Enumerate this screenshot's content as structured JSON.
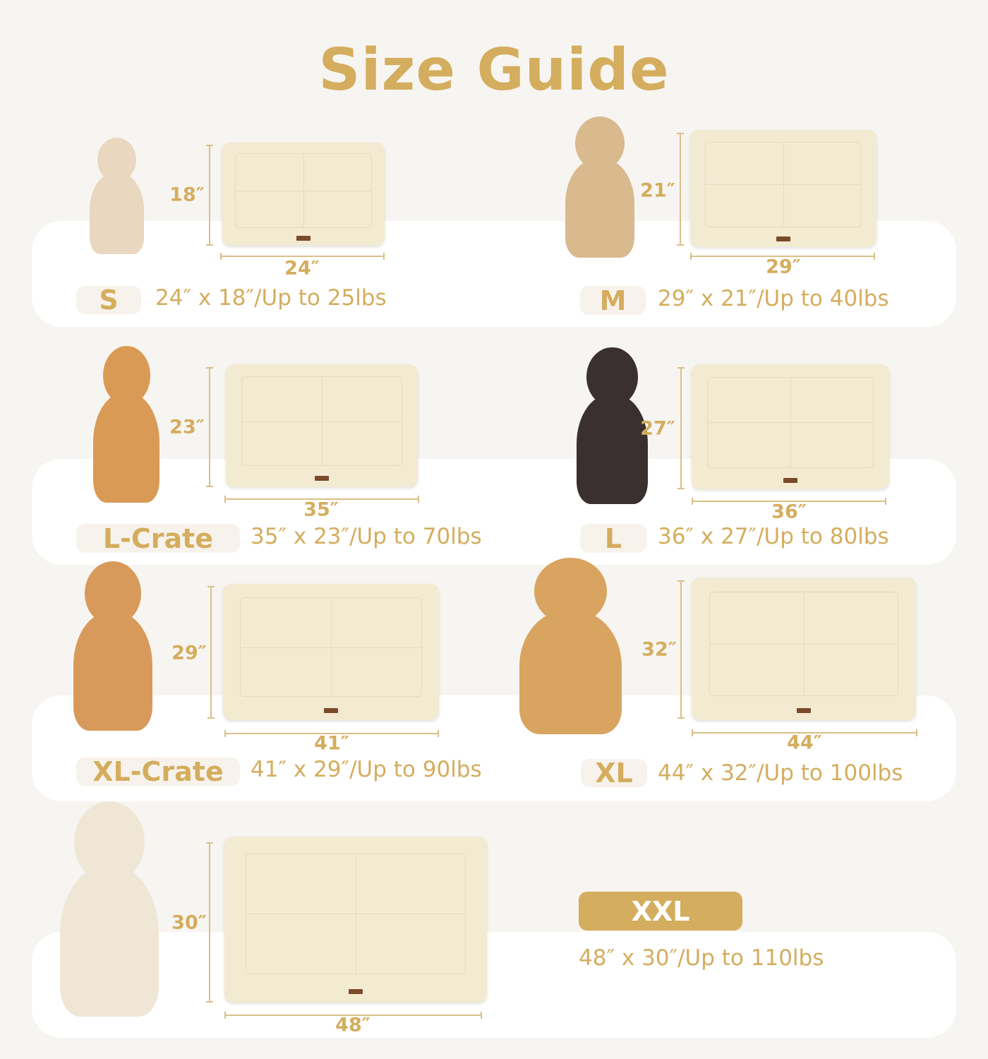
{
  "title": "Size Guide",
  "colors": {
    "accent": "#d4ad5e",
    "background": "#f7f5f1",
    "panel": "#ffffff",
    "mat": "#f3ead2"
  },
  "sizes": [
    {
      "label": "S",
      "width": "24″",
      "height": "18″",
      "spec": "24″ x 18″/Up to 25lbs",
      "dog": "chihuahua-photo"
    },
    {
      "label": "M",
      "width": "29″",
      "height": "21″",
      "spec": "29″ x 21″/Up to 40lbs",
      "dog": "doodle-photo"
    },
    {
      "label": "L-Crate",
      "width": "35″",
      "height": "23″",
      "spec": "35″ x 23″/Up to 70lbs",
      "dog": "corgi-photo"
    },
    {
      "label": "L",
      "width": "36″",
      "height": "27″",
      "spec": "36″ x 27″/Up to 80lbs",
      "dog": "border-collie-photo"
    },
    {
      "label": "XL-Crate",
      "width": "41″",
      "height": "29″",
      "spec": "41″ x 29″/Up to 90lbs",
      "dog": "shiba-inu-photo"
    },
    {
      "label": "XL",
      "width": "44″",
      "height": "32″",
      "spec": "44″ x 32″/Up to 100lbs",
      "dog": "golden-retriever-photo"
    },
    {
      "label": "XXL",
      "width": "48″",
      "height": "30″",
      "spec": "48″ x 30″/Up to 110lbs",
      "dog": "white-golden-retriever-photo",
      "highlighted": true
    }
  ]
}
